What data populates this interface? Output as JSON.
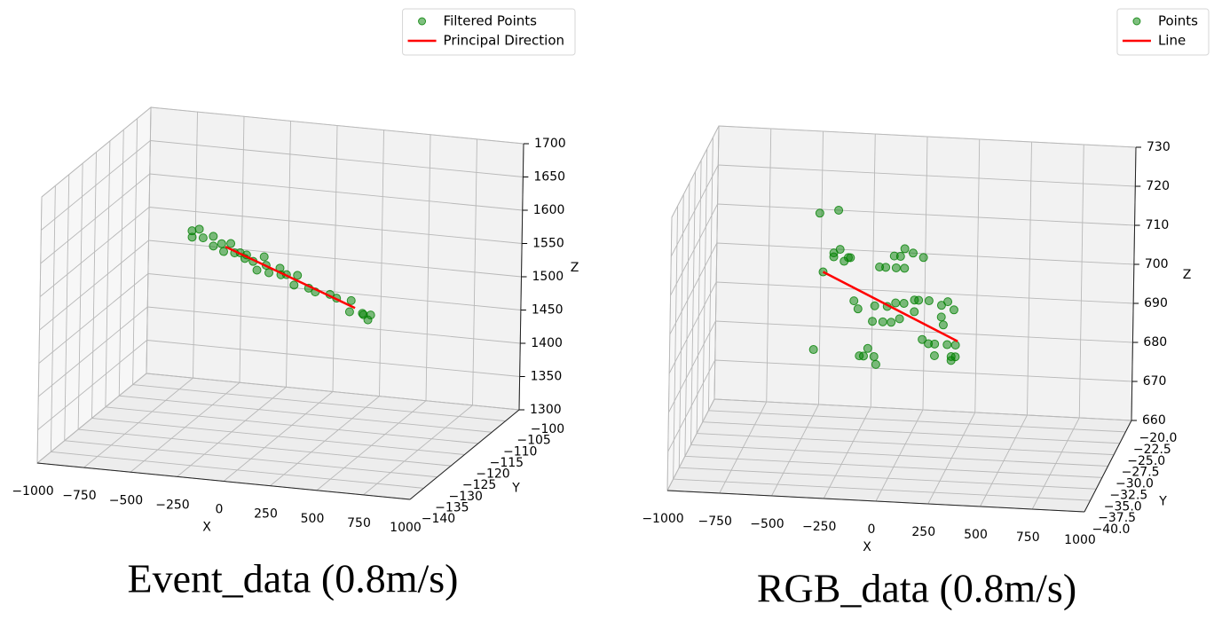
{
  "chart_data": [
    {
      "type": "scatter3d",
      "caption": "Event_data (0.8m/s)",
      "xlabel": "X",
      "ylabel": "Y",
      "zlabel": "Z",
      "legend": "upper right",
      "grid": true,
      "xlim": [
        -1000,
        1000
      ],
      "ylim": [
        -140,
        -100
      ],
      "zlim": [
        1300,
        1700
      ],
      "xticks": [
        {
          "value": -1000,
          "label": "−1000"
        },
        {
          "value": -750,
          "label": "−750"
        },
        {
          "value": -500,
          "label": "−500"
        },
        {
          "value": -250,
          "label": "−250"
        },
        0,
        250,
        500,
        750,
        1000
      ],
      "yticks": [
        {
          "value": -100,
          "label": "−100"
        },
        {
          "value": -105,
          "label": "−105"
        },
        {
          "value": -110,
          "label": "−110"
        },
        {
          "value": -115,
          "label": "−115"
        },
        {
          "value": -120,
          "label": "−120"
        },
        {
          "value": -125,
          "label": "−125"
        },
        {
          "value": -130,
          "label": "−130"
        },
        {
          "value": -135,
          "label": "−135"
        },
        {
          "value": -140,
          "label": "−140"
        }
      ],
      "zticks": [
        1300,
        1350,
        1400,
        1450,
        1500,
        1550,
        1600,
        1650,
        1700
      ],
      "series": [
        {
          "name": "Filtered Points",
          "kind": "scatter",
          "color": "green",
          "alpha": 0.5,
          "x": [
            -480,
            -470,
            -450,
            -420,
            -380,
            -350,
            -320,
            -300,
            -280,
            -250,
            -220,
            -200,
            -180,
            -150,
            -120,
            -100,
            -80,
            -50,
            -20,
            0,
            30,
            60,
            100,
            150,
            200,
            250,
            300,
            350,
            400,
            440,
            460,
            470,
            470
          ],
          "y": [
            -120,
            -118,
            -122,
            -120,
            -119,
            -121,
            -120,
            -118,
            -122,
            -120,
            -120,
            -119,
            -121,
            -120,
            -118,
            -122,
            -120,
            -121,
            -119,
            -120,
            -120,
            -118,
            -122,
            -120,
            -121,
            -119,
            -120,
            -118,
            -122,
            -120,
            -121,
            -119,
            -120
          ],
          "z": [
            1596,
            1592,
            1594,
            1587,
            1587,
            1580,
            1581,
            1575,
            1577,
            1569,
            1570,
            1564,
            1566,
            1559,
            1560,
            1554,
            1555,
            1548,
            1549,
            1543,
            1544,
            1537,
            1537,
            1527,
            1526,
            1517,
            1516,
            1507,
            1505,
            1497,
            1499,
            1492,
            1488
          ]
        },
        {
          "name": "Principal Direction",
          "kind": "line",
          "color": "red",
          "x": [
            -300,
            400
          ],
          "y": [
            -120,
            -120
          ],
          "z": [
            1577,
            1504
          ]
        }
      ]
    },
    {
      "type": "scatter3d",
      "caption": "RGB_data (0.8m/s)",
      "xlabel": "X",
      "ylabel": "Y",
      "zlabel": "Z",
      "legend": "upper right",
      "grid": true,
      "xlim": [
        -1000,
        1000
      ],
      "ylim": [
        -40,
        -20
      ],
      "zlim": [
        660,
        730
      ],
      "xticks": [
        {
          "value": -1000,
          "label": "−1000"
        },
        {
          "value": -750,
          "label": "−750"
        },
        {
          "value": -500,
          "label": "−500"
        },
        {
          "value": -250,
          "label": "−250"
        },
        0,
        250,
        500,
        750,
        1000
      ],
      "yticks": [
        {
          "value": -20,
          "label": "−20.0"
        },
        {
          "value": -22.5,
          "label": "−22.5"
        },
        {
          "value": -25,
          "label": "−25.0"
        },
        {
          "value": -27.5,
          "label": "−27.5"
        },
        {
          "value": -30,
          "label": "−30.0"
        },
        {
          "value": -32.5,
          "label": "−32.5"
        },
        {
          "value": -35,
          "label": "−35.0"
        },
        {
          "value": -37.5,
          "label": "−37.5"
        },
        {
          "value": -40,
          "label": "−40.0"
        }
      ],
      "zticks": [
        660,
        670,
        680,
        690,
        700,
        710,
        720,
        730
      ],
      "series": [
        {
          "name": "Points",
          "kind": "scatter",
          "color": "green",
          "alpha": 0.5,
          "x": [
            -400,
            -310,
            -380,
            -330,
            -300,
            -280,
            -260,
            -330,
            -250,
            10,
            50,
            -40,
            -10,
            100,
            -110,
            -80,
            -30,
            10,
            -230,
            -210,
            -130,
            -70,
            -30,
            10,
            60,
            80,
            -140,
            -90,
            -50,
            -10,
            60,
            130,
            190,
            220,
            250,
            190,
            200,
            -420,
            -160,
            -180,
            -200,
            -130,
            -120,
            100,
            130,
            160,
            220,
            260,
            160,
            240,
            260,
            240
          ],
          "y": [
            -30,
            -30,
            -30,
            -30,
            -30,
            -30,
            -30,
            -30,
            -30,
            -30,
            -30,
            -30,
            -30,
            -30,
            -30,
            -30,
            -30,
            -30,
            -30,
            -30,
            -30,
            -30,
            -30,
            -30,
            -30,
            -30,
            -30,
            -30,
            -30,
            -30,
            -30,
            -30,
            -30,
            -30,
            -30,
            -30,
            -30,
            -30,
            -30,
            -30,
            -30,
            -30,
            -30,
            -30,
            -30,
            -30,
            -30,
            -30,
            -30,
            -30,
            -30,
            -30
          ],
          "z": [
            721,
            722,
            706,
            711,
            712,
            709,
            710,
            710,
            710,
            713,
            712,
            711,
            711,
            711,
            708,
            708,
            708,
            708,
            699,
            697,
            698,
            698,
            699,
            699,
            700,
            700,
            694,
            694,
            694,
            695,
            697,
            700,
            699,
            700,
            698,
            696,
            694,
            686,
            687,
            685,
            685,
            685,
            683,
            690,
            689,
            689,
            689,
            689,
            686,
            686,
            686,
            685
          ]
        },
        {
          "name": "Line",
          "kind": "line",
          "color": "red",
          "x": [
            -380,
            270
          ],
          "y": [
            -30,
            -30
          ],
          "z": [
            706,
            690
          ]
        }
      ]
    }
  ]
}
